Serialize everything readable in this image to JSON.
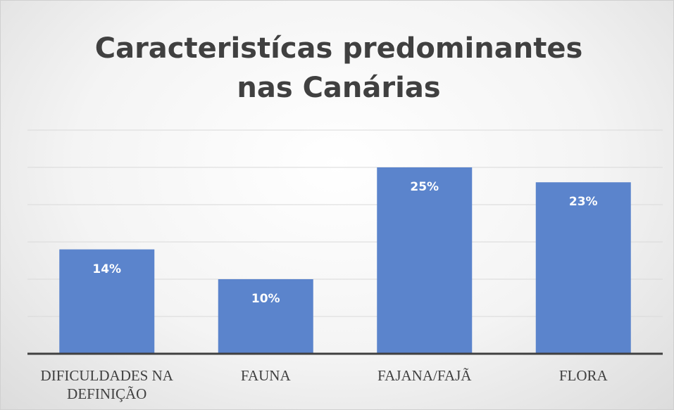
{
  "chart_data": {
    "type": "bar",
    "title": "Caracteristícas predominantes nas Canárias",
    "categories": [
      "DIFICULDADES NA DEFINIÇÃO",
      "FAUNA",
      "FAJANA/FAJÃ",
      "FLORA"
    ],
    "values": [
      14,
      10,
      25,
      23
    ],
    "value_labels": [
      "14%",
      "10%",
      "25%",
      "23%"
    ],
    "color": "#5b84cc",
    "ylim": [
      0,
      30
    ],
    "yticks": [
      0,
      5,
      10,
      15,
      20,
      25,
      30
    ],
    "grid": true
  }
}
